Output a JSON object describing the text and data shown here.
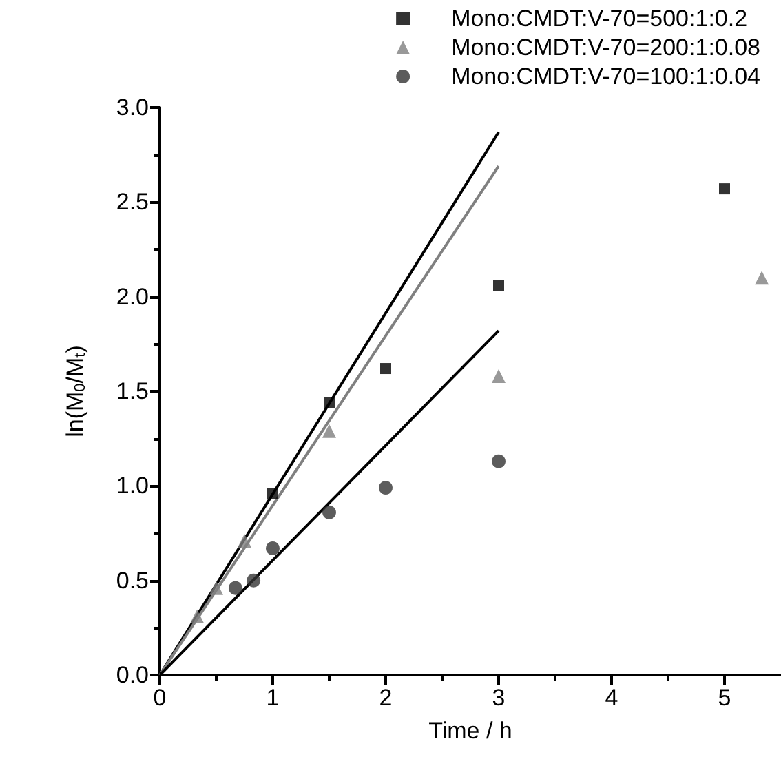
{
  "chart_data": {
    "type": "scatter",
    "xlabel": "Time / h",
    "ylabel": "ln(M$_{0}$/M$_{t}$)",
    "xlim": [
      0,
      5.5
    ],
    "xticks": [
      0,
      1,
      2,
      3,
      4,
      5
    ],
    "ylim": [
      0,
      3
    ],
    "yticks": [
      {
        "value": 0,
        "label": "0.0"
      },
      0.5,
      {
        "value": 1,
        "label": "1.0"
      },
      1.5,
      {
        "value": 2,
        "label": "2.0"
      },
      2.5,
      {
        "value": 3,
        "label": "3.0"
      }
    ],
    "grid": false,
    "legend": "top right",
    "series": [
      {
        "name": "Mono:CMDT:V-70=500:1:0.2",
        "color": "#000000",
        "marker": "square",
        "x": [
          1,
          1.5,
          2,
          3,
          5
        ],
        "values": [
          0.96,
          1.44,
          1.62,
          2.06,
          2.57
        ]
      },
      {
        "name": "Mono:CMDT:V-70=200:1:0.08",
        "color": "#808080",
        "marker": "triangle",
        "x": [
          0.33,
          0.5,
          0.75,
          1.5,
          3,
          5.33
        ],
        "values": [
          0.31,
          0.46,
          0.71,
          1.29,
          1.58,
          2.1
        ]
      },
      {
        "name": "Mono:CMDT:V-70=100:1:0.04",
        "color": "#333333",
        "marker": "circle",
        "x": [
          0.67,
          0.83,
          1,
          1.5,
          2,
          3
        ],
        "values": [
          0.46,
          0.5,
          0.67,
          0.86,
          0.99,
          1.13
        ]
      },
      {
        "type": "line",
        "color": "#000000",
        "marker": "none",
        "x": [
          0,
          3
        ],
        "values": [
          0,
          2.87
        ]
      },
      {
        "type": "line",
        "color": "#808080",
        "marker": "none",
        "x": [
          0,
          3
        ],
        "values": [
          0,
          2.69
        ]
      },
      {
        "type": "line",
        "color": "#000000",
        "marker": "none",
        "x": [
          0,
          3
        ],
        "values": [
          0,
          1.82
        ]
      }
    ]
  }
}
